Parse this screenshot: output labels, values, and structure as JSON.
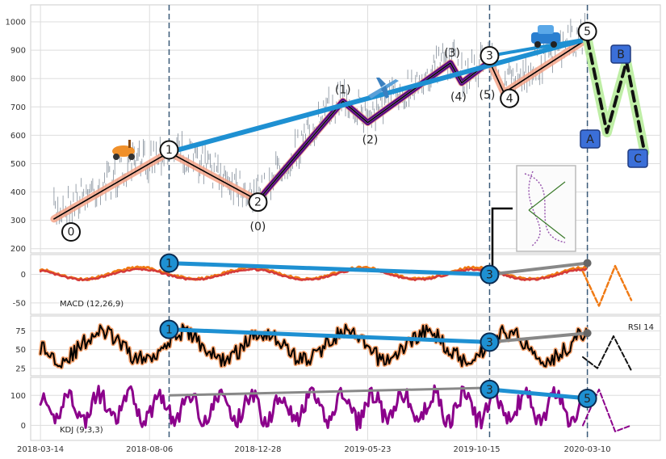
{
  "chart_data": [
    {
      "type": "line",
      "panel": "price",
      "y_ticks": [
        200,
        300,
        400,
        500,
        600,
        700,
        800,
        900,
        1000
      ],
      "ylim": [
        185,
        1060
      ],
      "grid": true,
      "price_series_note": "",
      "elliptic_path": {
        "points": [
          {
            "date": "2018-04-01",
            "y": 305,
            "label": "0"
          },
          {
            "date": "2018-09-01",
            "y": 540,
            "label": "1"
          },
          {
            "date": "2018-12-28",
            "y": 370,
            "label": "2"
          },
          {
            "date": "2019-04-20",
            "y": 720,
            "label": "(1)"
          },
          {
            "date": "2019-05-23",
            "y": 645,
            "label": "(2)"
          },
          {
            "date": "2019-09-10",
            "y": 855,
            "label": "(3)"
          },
          {
            "date": "2019-09-25",
            "y": 785,
            "label": "(4)"
          },
          {
            "date": "2019-11-01",
            "y": 860,
            "label": "(5)"
          },
          {
            "date": "2019-11-20",
            "y": 750,
            "label": "4"
          },
          {
            "date": "2020-03-10",
            "y": 940,
            "label": "5"
          }
        ],
        "waves": [
          "0",
          "1",
          "2",
          "(0)",
          "(1)",
          "(2)",
          "(3)",
          "(4)",
          "(5)",
          "3",
          "4",
          "5",
          "A",
          "B",
          "C"
        ]
      },
      "trend_line": [
        {
          "date": "2018-09-01",
          "y": 540
        },
        {
          "date": "2020-03-10",
          "y": 940
        }
      ],
      "projection": [
        {
          "date": "2020-03-10",
          "y": 940,
          "label": ""
        },
        {
          "date": "2020-04-05",
          "y": 610,
          "label": "A"
        },
        {
          "date": "2020-05-01",
          "y": 860,
          "label": "B"
        },
        {
          "date": "2020-05-25",
          "y": 540,
          "label": "C"
        }
      ],
      "vlines": [
        "2018-09-01",
        "2019-11-01",
        "2020-03-10"
      ],
      "icons": [
        "scooter-icon",
        "airplane-icon",
        "car-icon"
      ]
    },
    {
      "type": "line",
      "panel": "macd",
      "label": "MACD (12,26,9)",
      "y_ticks": [
        0,
        -50
      ],
      "ylim": [
        -70,
        35
      ],
      "divergence": [
        {
          "date": "2018-09-01",
          "y": 20,
          "label": "1"
        },
        {
          "date": "2019-11-01",
          "y": 0,
          "label": "3"
        },
        {
          "date": "2020-03-10",
          "y": 20,
          "label": ""
        }
      ]
    },
    {
      "type": "line",
      "panel": "rsi",
      "label": "RSI 14",
      "y_ticks": [
        75,
        50,
        25
      ],
      "ylim": [
        15,
        95
      ],
      "divergence": [
        {
          "date": "2018-09-01",
          "y": 77,
          "label": "1"
        },
        {
          "date": "2019-11-01",
          "y": 60,
          "label": "3"
        },
        {
          "date": "2020-03-10",
          "y": 72,
          "label": ""
        }
      ]
    },
    {
      "type": "line",
      "panel": "kdj",
      "label": "KDJ (9,3,3)",
      "y_ticks": [
        100,
        0
      ],
      "ylim": [
        -50,
        160
      ],
      "divergence": [
        {
          "date": "2019-11-01",
          "y": 120,
          "label": "3"
        },
        {
          "date": "2020-03-10",
          "y": 90,
          "label": "5"
        }
      ]
    }
  ],
  "x_axis": {
    "ticks": [
      "2018-03-14",
      "2018-08-06",
      "2018-12-28",
      "2019-05-23",
      "2019-10-15",
      "2020-03-10"
    ],
    "range": [
      "2018-03-01",
      "2020-06-15"
    ]
  },
  "colors": {
    "trend": "#1e90d2",
    "path": "#000000",
    "path_glow": "#f4a58a",
    "sub_path": "#5a0a80",
    "macd_fast": "#f07a14",
    "macd_slow": "#d43a3a",
    "rsi": "#000000",
    "kdj": "#8b008b",
    "divergence_gray": "#888888",
    "marker_fill": "#1e90d2",
    "abc_box": "#3b6fd8",
    "vline": "#3a5a78"
  }
}
